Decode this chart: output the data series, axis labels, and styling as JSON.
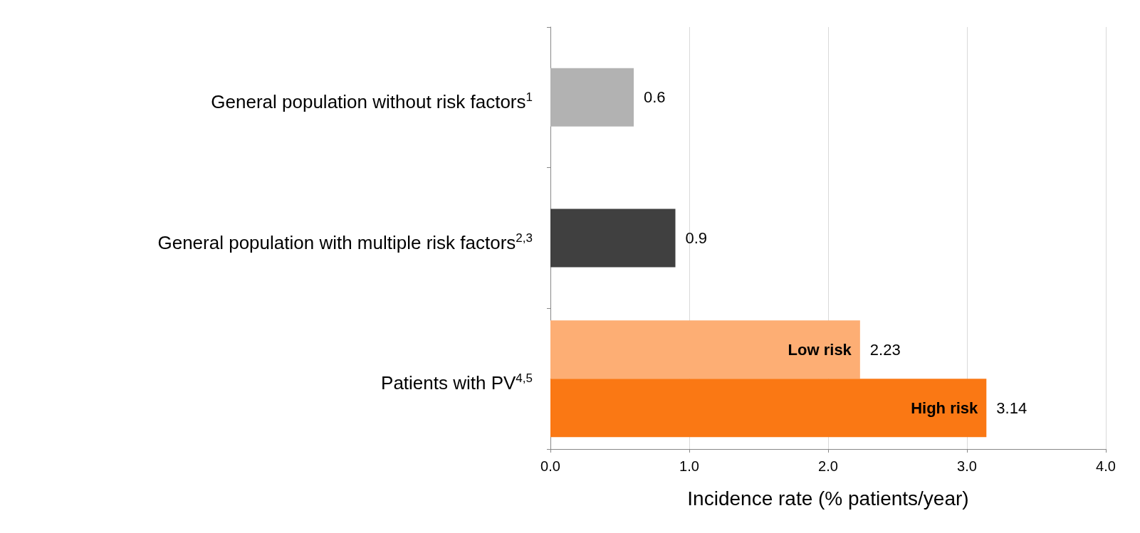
{
  "chart_data": {
    "type": "bar",
    "orientation": "horizontal",
    "categories": [
      "General population without risk factors$^{1}$",
      "General population with multiple risk factors$^{2,3}$",
      "Patients with PV$^{4,5}$"
    ],
    "series": [
      {
        "values": [
          0.6,
          0.9,
          null
        ],
        "colors": [
          "#b2b2b2",
          "#404040",
          null
        ]
      },
      {
        "name": "Low risk",
        "color": "#fdae74",
        "values": [
          null,
          null,
          2.23
        ]
      },
      {
        "name": "High risk",
        "color": "#fa7814",
        "values": [
          null,
          null,
          3.14
        ]
      }
    ],
    "xlabel": "Incidence rate (% patients/year)",
    "xlim": [
      0,
      4
    ],
    "xticks": [
      {
        "value": 0,
        "label": "0.0"
      },
      {
        "value": 1,
        "label": "1.0"
      },
      {
        "value": 2,
        "label": "2.0"
      },
      {
        "value": 3,
        "label": "3.0"
      },
      {
        "value": 4,
        "label": "4.0"
      }
    ],
    "grid": "x",
    "data_labels": true,
    "legend": false
  }
}
